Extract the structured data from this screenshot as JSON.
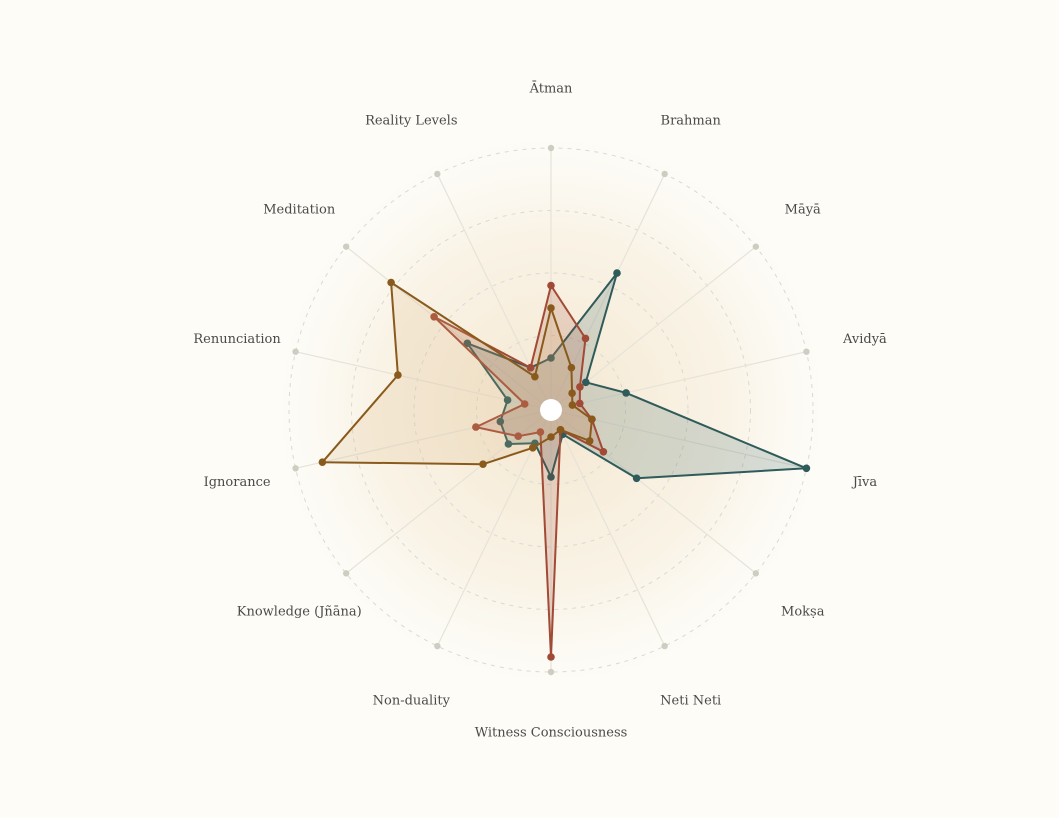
{
  "chart_data": {
    "type": "radar",
    "axes": [
      "Ātman",
      "Brahman",
      "Māyā",
      "Avidyā",
      "Jīva",
      "Mokṣa",
      "Neti Neti",
      "Witness Consciousness",
      "Non-duality",
      "Knowledge (Jñāna)",
      "Ignorance",
      "Renunciation",
      "Meditation",
      "Reality Levels"
    ],
    "range": [
      0,
      1
    ],
    "rings": 4,
    "grid": true,
    "legend": "none",
    "series": [
      {
        "color": "#2f5b5a",
        "fill": "#2f5b5a",
        "values": [
          0.16,
          0.56,
          0.13,
          0.26,
          1.0,
          0.39,
          0.06,
          0.22,
          0.1,
          0.17,
          0.16,
          0.13,
          0.38,
          0.14
        ]
      },
      {
        "color": "#a14a35",
        "fill": "#a14a35",
        "values": [
          0.45,
          0.27,
          0.1,
          0.07,
          0.12,
          0.22,
          0.04,
          0.94,
          0.05,
          0.12,
          0.26,
          0.06,
          0.55,
          0.14
        ]
      },
      {
        "color": "#8a5a1c",
        "fill": "#d9b27a",
        "values": [
          0.36,
          0.14,
          0.06,
          0.04,
          0.12,
          0.15,
          0.04,
          0.06,
          0.12,
          0.3,
          0.89,
          0.58,
          0.77,
          0.1
        ]
      }
    ]
  }
}
